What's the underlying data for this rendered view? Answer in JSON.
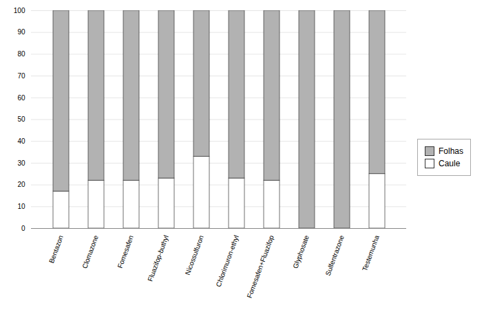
{
  "chart_data": {
    "type": "bar",
    "stacked": true,
    "categories": [
      "Bentazon",
      "Clomazone",
      "Fomesafen",
      "Fluazifop-buthyl",
      "Nicossulfuron",
      "Chlorimuron-ethyl",
      "Fomesafen+Fluazifop",
      "Glyphosate",
      "Sulfentrazone",
      "Testemunha"
    ],
    "series": [
      {
        "name": "Caule",
        "color": "#ffffff",
        "values": [
          17,
          22,
          22,
          23,
          33,
          23,
          22,
          0,
          0,
          25
        ]
      },
      {
        "name": "Folhas",
        "color": "#b2b2b2",
        "values": [
          83,
          78,
          78,
          77,
          67,
          77,
          78,
          100,
          100,
          75
        ]
      }
    ],
    "ylim": [
      0,
      100
    ],
    "yticks": [
      0,
      10,
      20,
      30,
      40,
      50,
      60,
      70,
      80,
      90,
      100
    ],
    "grid": true,
    "legend": "right"
  }
}
